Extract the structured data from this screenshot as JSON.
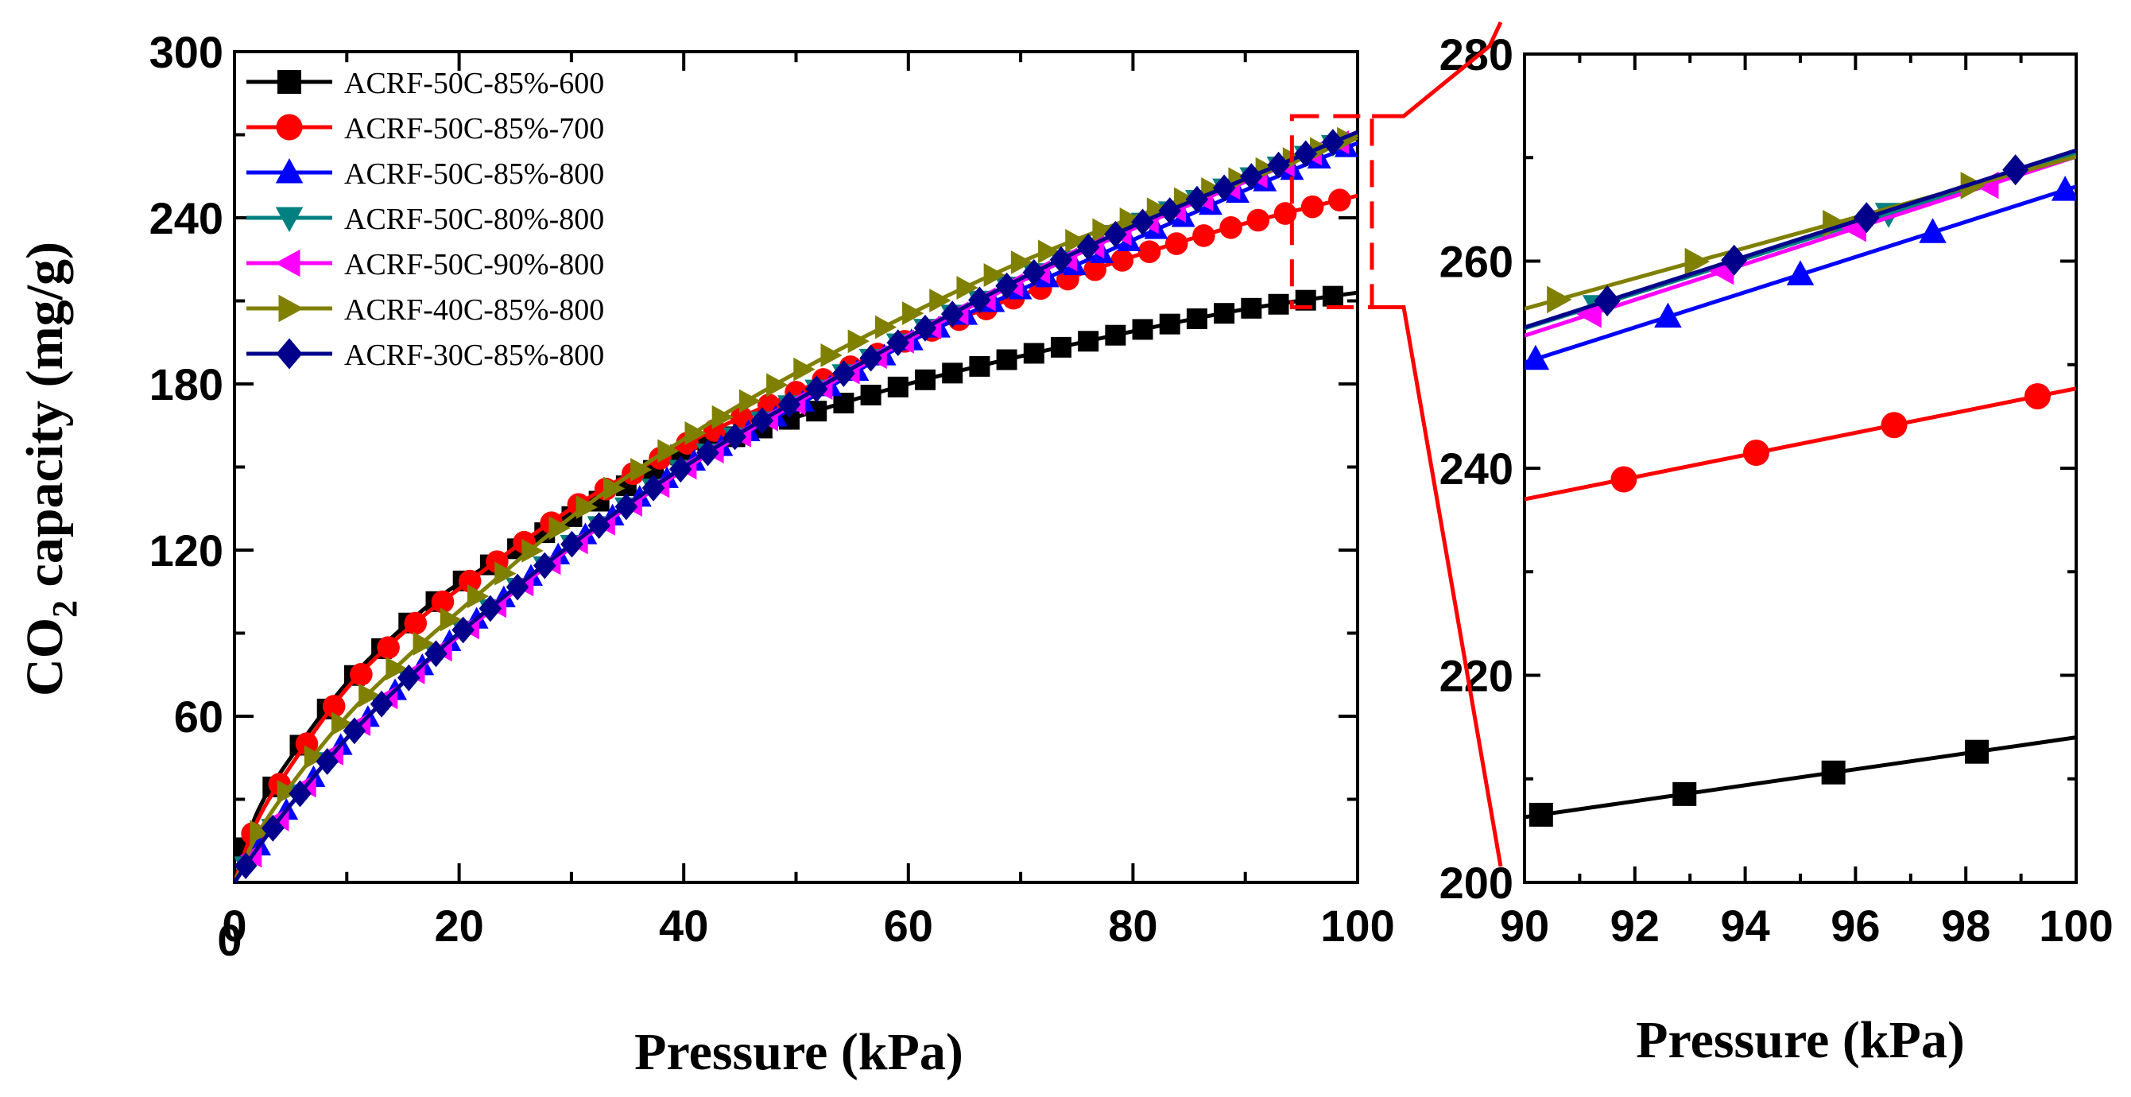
{
  "chart_data": [
    {
      "type": "line",
      "panel": "main",
      "xlabel": "Pressure (kPa)",
      "ylabel": {
        "prefix": "CO",
        "subscript": "2",
        "suffix": " capacity (mg/g)"
      },
      "xlim": [
        0,
        100
      ],
      "ylim": [
        0,
        300
      ],
      "xticks": [
        0,
        20,
        40,
        60,
        80,
        100
      ],
      "yticks": [
        60,
        120,
        180,
        240,
        300
      ],
      "legend_position": "top-left",
      "series": [
        {
          "name": "ACRF-50C-85%-600",
          "color": "#000000",
          "marker": "square",
          "x": [
            0,
            2,
            5,
            10,
            15,
            20,
            30,
            40,
            50,
            60,
            70,
            80,
            90,
            100
          ],
          "y": [
            0,
            25,
            45,
            72,
            92,
            108,
            132,
            155,
            168,
            180,
            190,
            199,
            207,
            213
          ]
        },
        {
          "name": "ACRF-50C-85%-700",
          "color": "#ff0000",
          "marker": "circle",
          "x": [
            0,
            2,
            5,
            10,
            15,
            20,
            30,
            40,
            50,
            60,
            70,
            80,
            90,
            100
          ],
          "y": [
            0,
            22,
            42,
            70,
            90,
            106,
            135,
            158,
            177,
            196,
            212,
            226,
            238,
            248
          ]
        },
        {
          "name": "ACRF-50C-85%-800",
          "color": "#0000ff",
          "marker": "triangle-up",
          "x": [
            0,
            2,
            5,
            10,
            15,
            20,
            30,
            40,
            50,
            60,
            70,
            80,
            90,
            100
          ],
          "y": [
            0,
            12,
            28,
            52,
            72,
            90,
            122,
            150,
            172,
            195,
            214,
            232,
            250,
            267
          ]
        },
        {
          "name": "ACRF-50C-80%-800",
          "color": "#008080",
          "marker": "triangle-down",
          "x": [
            0,
            2,
            5,
            10,
            15,
            20,
            30,
            40,
            50,
            60,
            70,
            80,
            90,
            100
          ],
          "y": [
            0,
            12,
            28,
            52,
            72,
            90,
            122,
            150,
            174,
            197,
            218,
            237,
            254,
            270
          ]
        },
        {
          "name": "ACRF-50C-90%-800",
          "color": "#ff00ff",
          "marker": "triangle-left",
          "x": [
            0,
            2,
            5,
            10,
            15,
            20,
            30,
            40,
            50,
            60,
            70,
            80,
            90,
            100
          ],
          "y": [
            0,
            12,
            28,
            52,
            72,
            89,
            121,
            149,
            173,
            196,
            217,
            236,
            253,
            270
          ]
        },
        {
          "name": "ACRF-40C-85%-800",
          "color": "#808000",
          "marker": "triangle-right",
          "x": [
            0,
            2,
            5,
            10,
            15,
            20,
            30,
            40,
            50,
            60,
            70,
            80,
            90,
            100
          ],
          "y": [
            0,
            17,
            35,
            60,
            80,
            98,
            132,
            160,
            184,
            205,
            224,
            240,
            255,
            270
          ]
        },
        {
          "name": "ACRF-30C-85%-800",
          "color": "#00008b",
          "marker": "diamond",
          "x": [
            0,
            2,
            5,
            10,
            15,
            20,
            30,
            40,
            50,
            60,
            70,
            80,
            90,
            100
          ],
          "y": [
            0,
            12,
            28,
            52,
            72,
            90,
            122,
            150,
            174,
            197,
            218,
            237,
            254,
            271
          ]
        }
      ]
    },
    {
      "type": "line",
      "panel": "zoom",
      "xlabel": "Pressure (kPa)",
      "xlim": [
        90,
        100
      ],
      "ylim": [
        200,
        280
      ],
      "xticks": [
        90,
        92,
        94,
        96,
        98,
        100
      ],
      "yticks": [
        200,
        220,
        240,
        260,
        280
      ],
      "zoom_window": {
        "x": [
          95,
          100
        ],
        "y": [
          210,
          275
        ]
      },
      "series": [
        {
          "name": "ACRF-50C-85%-600",
          "color": "#000000",
          "marker": "square",
          "x": [
            90,
            100
          ],
          "y": [
            206.3,
            214
          ],
          "markers_x": [
            90.3,
            92.9,
            95.6,
            98.2
          ]
        },
        {
          "name": "ACRF-50C-85%-700",
          "color": "#ff0000",
          "marker": "circle",
          "x": [
            90,
            100
          ],
          "y": [
            237,
            247.7
          ],
          "markers_x": [
            91.8,
            94.2,
            96.7,
            99.3
          ]
        },
        {
          "name": "ACRF-50C-85%-800",
          "color": "#0000ff",
          "marker": "triangle-up",
          "x": [
            90,
            100
          ],
          "y": [
            250.2,
            267.2
          ],
          "markers_x": [
            90.2,
            92.6,
            95.0,
            97.4,
            99.8
          ]
        },
        {
          "name": "ACRF-50C-80%-800",
          "color": "#008080",
          "marker": "triangle-down",
          "x": [
            90,
            100
          ],
          "y": [
            253.5,
            270.3
          ],
          "markers_x": [
            91.3,
            96.6
          ]
        },
        {
          "name": "ACRF-50C-90%-800",
          "color": "#ff00ff",
          "marker": "triangle-left",
          "x": [
            90,
            100
          ],
          "y": [
            252.8,
            270.1
          ],
          "markers_x": [
            91.2,
            93.6,
            96.0,
            98.4
          ]
        },
        {
          "name": "ACRF-40C-85%-800",
          "color": "#808000",
          "marker": "triangle-right",
          "x": [
            90,
            100
          ],
          "y": [
            255.4,
            270.1
          ],
          "markers_x": [
            90.6,
            93.1,
            95.6,
            98.1
          ]
        },
        {
          "name": "ACRF-30C-85%-800",
          "color": "#00008b",
          "marker": "diamond",
          "x": [
            90,
            100
          ],
          "y": [
            253.6,
            270.7
          ],
          "markers_x": [
            91.5,
            93.8,
            96.2,
            98.9
          ]
        }
      ]
    }
  ]
}
